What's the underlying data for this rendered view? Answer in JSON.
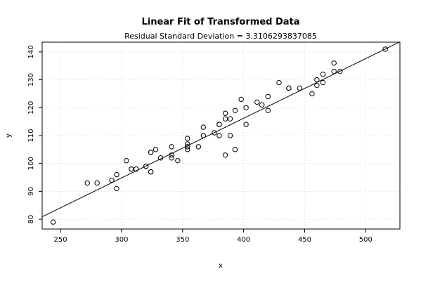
{
  "chart_data": {
    "type": "scatter",
    "title": "Linear Fit of Transformed Data",
    "subtitle": "Residual Standard Deviation =  3.3106293837085",
    "xlabel": "x",
    "ylabel": "y",
    "xlim": [
      235,
      528
    ],
    "ylim": [
      76.5,
      143.5
    ],
    "xticks": [
      250,
      300,
      350,
      400,
      450,
      500
    ],
    "yticks": [
      80,
      90,
      100,
      110,
      120,
      130,
      140
    ],
    "grid": true,
    "points": [
      [
        244,
        79
      ],
      [
        272,
        93
      ],
      [
        280,
        93
      ],
      [
        292,
        94
      ],
      [
        296,
        96
      ],
      [
        296,
        91
      ],
      [
        304,
        101
      ],
      [
        308,
        98
      ],
      [
        308,
        98
      ],
      [
        312,
        98
      ],
      [
        320,
        99
      ],
      [
        320,
        99
      ],
      [
        324,
        104
      ],
      [
        324,
        104
      ],
      [
        324,
        97
      ],
      [
        324,
        97
      ],
      [
        328,
        105
      ],
      [
        332,
        102
      ],
      [
        341,
        106
      ],
      [
        341,
        103
      ],
      [
        341,
        102
      ],
      [
        346,
        101
      ],
      [
        354,
        109
      ],
      [
        354,
        107
      ],
      [
        354,
        106
      ],
      [
        354,
        105
      ],
      [
        363,
        106
      ],
      [
        367,
        110
      ],
      [
        367,
        113
      ],
      [
        376,
        111
      ],
      [
        380,
        114
      ],
      [
        380,
        114
      ],
      [
        380,
        110
      ],
      [
        385,
        118
      ],
      [
        385,
        116
      ],
      [
        385,
        103
      ],
      [
        389,
        116
      ],
      [
        389,
        110
      ],
      [
        393,
        119
      ],
      [
        393,
        105
      ],
      [
        398,
        123
      ],
      [
        402,
        120
      ],
      [
        402,
        114
      ],
      [
        411,
        122
      ],
      [
        415,
        121
      ],
      [
        420,
        124
      ],
      [
        420,
        119
      ],
      [
        429,
        129
      ],
      [
        437,
        127
      ],
      [
        437,
        127
      ],
      [
        446,
        127
      ],
      [
        456,
        125
      ],
      [
        460,
        130
      ],
      [
        460,
        128
      ],
      [
        465,
        132
      ],
      [
        465,
        129
      ],
      [
        474,
        136
      ],
      [
        474,
        133
      ],
      [
        479,
        133
      ],
      [
        516,
        141
      ]
    ],
    "fit_line": {
      "x": [
        235,
        528
      ],
      "y": [
        80.9,
        143.6
      ]
    }
  }
}
